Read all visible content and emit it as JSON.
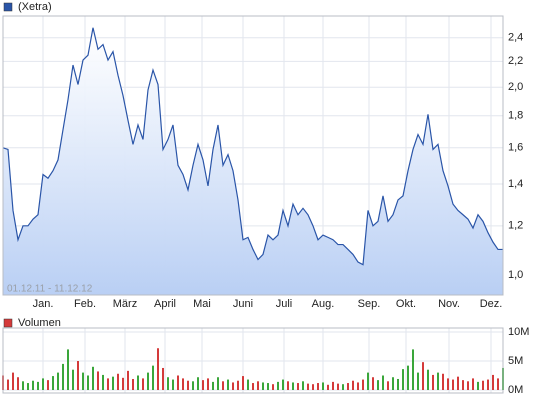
{
  "chart_data": [
    {
      "type": "line",
      "ylog": true,
      "grid": true,
      "annotation": "01.12.11 - 11.12.12",
      "xlim": [
        0,
        100
      ],
      "xticks": [
        {
          "value": 8,
          "label": "Jan."
        },
        {
          "value": 16.4,
          "label": "Feb."
        },
        {
          "value": 24.4,
          "label": "März"
        },
        {
          "value": 32.4,
          "label": "April"
        },
        {
          "value": 39.8,
          "label": "Mai"
        },
        {
          "value": 48,
          "label": "Juni"
        },
        {
          "value": 56.2,
          "label": "Juli"
        },
        {
          "value": 64,
          "label": "Aug."
        },
        {
          "value": 73.2,
          "label": "Sep."
        },
        {
          "value": 80.6,
          "label": "Okt."
        },
        {
          "value": 89.2,
          "label": "Nov."
        },
        {
          "value": 97.6,
          "label": "Dez."
        }
      ],
      "ylim": [
        0.93,
        2.6
      ],
      "yticks": [
        {
          "value": 1.0,
          "label": "1,0"
        },
        {
          "value": 1.2,
          "label": "1,2"
        },
        {
          "value": 1.4,
          "label": "1,4"
        },
        {
          "value": 1.6,
          "label": "1,6"
        },
        {
          "value": 1.8,
          "label": "1,8"
        },
        {
          "value": 2.0,
          "label": "2,0"
        },
        {
          "value": 2.2,
          "label": "2,2"
        },
        {
          "value": 2.4,
          "label": "2,4"
        }
      ],
      "series": [
        {
          "name": "(Xetra)",
          "color": "#2a55a8",
          "fill": "#c6d8f7",
          "values": [
            1.6,
            1.59,
            1.27,
            1.14,
            1.2,
            1.2,
            1.23,
            1.25,
            1.45,
            1.43,
            1.47,
            1.53,
            1.71,
            1.91,
            2.17,
            2.02,
            2.21,
            2.25,
            2.49,
            2.3,
            2.34,
            2.21,
            2.28,
            2.09,
            1.94,
            1.77,
            1.62,
            1.74,
            1.65,
            1.98,
            2.13,
            2.02,
            1.59,
            1.65,
            1.74,
            1.5,
            1.45,
            1.37,
            1.5,
            1.62,
            1.53,
            1.39,
            1.59,
            1.74,
            1.5,
            1.56,
            1.47,
            1.32,
            1.14,
            1.15,
            1.1,
            1.06,
            1.08,
            1.16,
            1.14,
            1.16,
            1.27,
            1.2,
            1.3,
            1.25,
            1.28,
            1.25,
            1.2,
            1.14,
            1.16,
            1.15,
            1.14,
            1.12,
            1.12,
            1.1,
            1.08,
            1.05,
            1.04,
            1.27,
            1.2,
            1.22,
            1.34,
            1.22,
            1.25,
            1.32,
            1.34,
            1.47,
            1.59,
            1.68,
            1.62,
            1.81,
            1.59,
            1.62,
            1.47,
            1.39,
            1.3,
            1.27,
            1.25,
            1.23,
            1.19,
            1.25,
            1.22,
            1.17,
            1.13,
            1.1,
            1.1
          ]
        }
      ]
    },
    {
      "type": "bar",
      "grid": true,
      "up_color": "#3aa63a",
      "down_color": "#d43a3a",
      "xlim": [
        0,
        100
      ],
      "ylim": [
        0,
        10000000
      ],
      "yticks": [
        {
          "value": 0,
          "label": "0M"
        },
        {
          "value": 5000000,
          "label": "5M"
        },
        {
          "value": 10000000,
          "label": "10M"
        }
      ],
      "series": [
        {
          "name": "Volumen",
          "color": "#d43a3a",
          "values": [
            2500000,
            1800000,
            3000000,
            2200000,
            1500000,
            1200000,
            1600000,
            1400000,
            2000000,
            1700000,
            2400000,
            3000000,
            4500000,
            7000000,
            3500000,
            5000000,
            3000000,
            2500000,
            4000000,
            3200000,
            2600000,
            2000000,
            2300000,
            2800000,
            2100000,
            3300000,
            1900000,
            2500000,
            2000000,
            3000000,
            4200000,
            7200000,
            3800000,
            2200000,
            1800000,
            2500000,
            2000000,
            1600000,
            1500000,
            2200000,
            1700000,
            2000000,
            1400000,
            2200000,
            1500000,
            1800000,
            1300000,
            1600000,
            2400000,
            1800000,
            1200000,
            1500000,
            1300000,
            1200000,
            1000000,
            1400000,
            1800000,
            1500000,
            1300000,
            1200000,
            1500000,
            1100000,
            1000000,
            1200000,
            1300000,
            900000,
            1400000,
            1100000,
            1000000,
            1200000,
            1600000,
            1300000,
            1800000,
            3000000,
            2200000,
            1700000,
            2500000,
            1500000,
            2200000,
            1900000,
            3600000,
            4200000,
            7000000,
            3000000,
            4800000,
            3500000,
            2600000,
            3000000,
            2800000,
            2000000,
            1800000,
            2300000,
            1700000,
            1500000,
            2000000,
            1400000,
            1600000,
            1800000,
            2600000,
            2000000,
            3800000
          ]
        }
      ]
    }
  ]
}
